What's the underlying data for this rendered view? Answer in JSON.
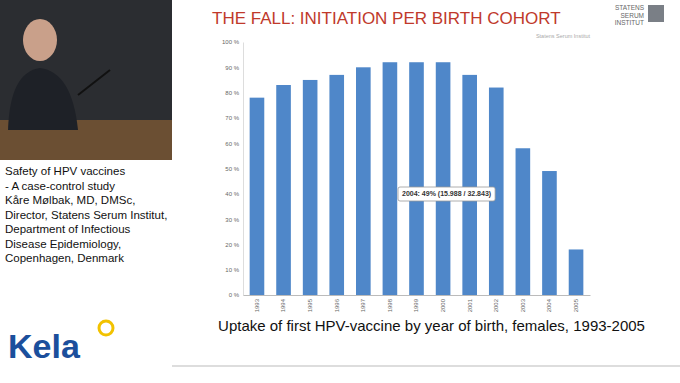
{
  "chart_data": {
    "type": "bar",
    "title": "THE FALL: INITIATION PER BIRTH COHORT",
    "caption": "Uptake of first HPV-vaccine by year of birth, females, 1993-2005",
    "source": "Statens Serum Institut",
    "annotations": [
      "2004: 49% (15.988 / 32.843)"
    ],
    "categories": [
      "1993",
      "1994",
      "1995",
      "1996",
      "1997",
      "1998",
      "1999",
      "2000",
      "2001",
      "2002",
      "2003",
      "2004",
      "2005"
    ],
    "values": [
      78,
      83,
      85,
      87,
      90,
      92,
      92,
      92,
      87,
      82,
      58,
      49,
      18
    ],
    "color": "#4f87c9",
    "ylim": [
      0,
      100
    ],
    "yticks": [
      {
        "value": 0,
        "label": "0 %"
      },
      {
        "value": 10,
        "label": "10 %"
      },
      {
        "value": 20,
        "label": "20 %"
      },
      {
        "value": 30,
        "label": "30 %"
      },
      {
        "value": 40,
        "label": "40 %"
      },
      {
        "value": 50,
        "label": "50 %"
      },
      {
        "value": 60,
        "label": "60 %"
      },
      {
        "value": 70,
        "label": "70 %"
      },
      {
        "value": 80,
        "label": "80 %"
      },
      {
        "value": 90,
        "label": "90 %"
      },
      {
        "value": 100,
        "label": "100 %"
      }
    ],
    "grid": false
  },
  "slide": {
    "logo_lines": [
      "STATENS",
      "SERUM",
      "INSTITUT"
    ],
    "sidebar": [
      "Safety of HPV vaccines",
      "- A case-control study",
      "Kåre Mølbak, MD, DMSc,",
      "Director, Statens Serum Institut,",
      "Department of Infectious",
      "Disease Epidemiology,",
      "Copenhagen, Denmark"
    ],
    "brand": "Kela"
  }
}
